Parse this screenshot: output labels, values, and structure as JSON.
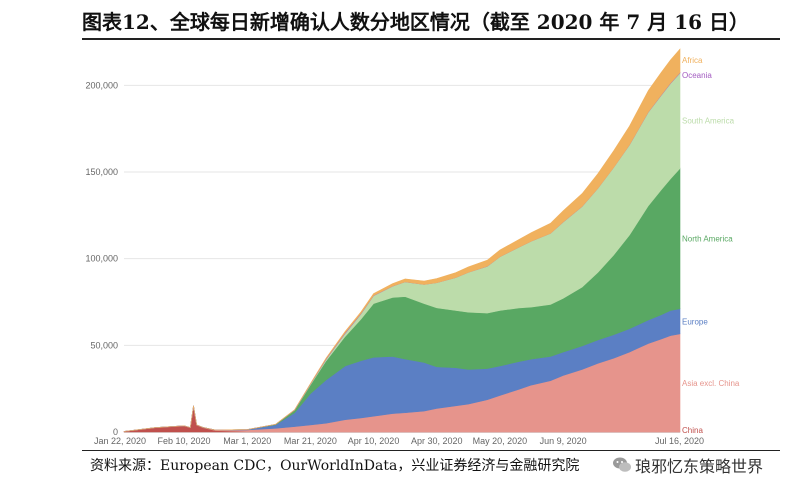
{
  "page": {
    "title": "图表12、全球每日新增确认人数分地区情况（截至 2020 年 7 月 16 日）",
    "source": "资料来源：European CDC，OurWorldInData，兴业证券经济与金融研究院",
    "watermark": "琅邪忆东策略世界"
  },
  "chart_data": {
    "type": "area",
    "title": "",
    "xlabel": "",
    "ylabel": "",
    "x": [
      "2020-01-22",
      "2020-02-01",
      "2020-02-10",
      "2020-02-12",
      "2020-02-13",
      "2020-02-14",
      "2020-02-16",
      "2020-02-20",
      "2020-03-01",
      "2020-03-10",
      "2020-03-16",
      "2020-03-21",
      "2020-03-26",
      "2020-04-01",
      "2020-04-06",
      "2020-04-10",
      "2020-04-16",
      "2020-04-20",
      "2020-04-26",
      "2020-04-30",
      "2020-05-06",
      "2020-05-10",
      "2020-05-16",
      "2020-05-20",
      "2020-05-26",
      "2020-05-30",
      "2020-06-05",
      "2020-06-09",
      "2020-06-15",
      "2020-06-20",
      "2020-06-25",
      "2020-06-30",
      "2020-07-03",
      "2020-07-06",
      "2020-07-10",
      "2020-07-13",
      "2020-07-16"
    ],
    "ylim": [
      0,
      225000
    ],
    "yticks": [
      0,
      50000,
      100000,
      150000,
      200000
    ],
    "ytick_labels": [
      "0",
      "50,000",
      "100,000",
      "150,000",
      "200,000"
    ],
    "xtick_labels": [
      "Jan 22, 2020",
      "Feb 10, 2020",
      "Mar 1, 2020",
      "Mar 21, 2020",
      "Apr 10, 2020",
      "Apr 30, 2020",
      "May 20, 2020",
      "Jun 9, 2020",
      "Jul 16, 2020"
    ],
    "xtick_index": [
      0,
      2,
      8,
      11,
      15,
      19,
      23,
      27,
      36
    ],
    "stacked": true,
    "series": [
      {
        "name": "China",
        "color": "#c0504d",
        "values": [
          300,
          2500,
          3500,
          2500,
          15000,
          4000,
          2500,
          800,
          200,
          100,
          100,
          100,
          100,
          100,
          100,
          100,
          100,
          100,
          100,
          100,
          100,
          100,
          100,
          100,
          100,
          100,
          100,
          100,
          100,
          100,
          100,
          100,
          100,
          100,
          100,
          100,
          100
        ]
      },
      {
        "name": "Asia excl. China",
        "color": "#e6948c",
        "values": [
          0,
          50,
          100,
          100,
          100,
          100,
          150,
          300,
          1000,
          2000,
          3000,
          4000,
          5000,
          7000,
          8000,
          9000,
          10500,
          11000,
          12000,
          13500,
          15000,
          16000,
          18500,
          21000,
          24500,
          27000,
          29500,
          32500,
          36000,
          39500,
          42500,
          46000,
          48500,
          51000,
          53500,
          55500,
          56500
        ]
      },
      {
        "name": "Europe",
        "color": "#5b7fc4",
        "values": [
          0,
          0,
          0,
          0,
          0,
          0,
          0,
          20,
          200,
          2000,
          8000,
          18000,
          25000,
          31000,
          33000,
          34000,
          33000,
          31000,
          28000,
          24000,
          22000,
          20000,
          18000,
          17000,
          16000,
          15000,
          14000,
          13500,
          13500,
          13500,
          13500,
          13500,
          13500,
          13500,
          14000,
          14500,
          14500
        ]
      },
      {
        "name": "North America",
        "color": "#59a863",
        "values": [
          0,
          5,
          5,
          5,
          5,
          5,
          5,
          20,
          20,
          300,
          1500,
          5000,
          11000,
          17000,
          24000,
          31000,
          34000,
          36000,
          34000,
          34000,
          33000,
          33000,
          32000,
          32000,
          31000,
          30000,
          30000,
          31000,
          34000,
          39000,
          46000,
          54000,
          60000,
          66000,
          72000,
          76000,
          81000
        ]
      },
      {
        "name": "South America",
        "color": "#bcdcaa",
        "values": [
          0,
          0,
          0,
          0,
          0,
          0,
          0,
          0,
          0,
          20,
          100,
          400,
          900,
          1800,
          3000,
          4500,
          6500,
          8500,
          11000,
          14500,
          19000,
          23000,
          27000,
          31000,
          35000,
          38000,
          41000,
          44000,
          46500,
          48500,
          50500,
          52000,
          53000,
          54000,
          54500,
          55000,
          55000
        ]
      },
      {
        "name": "Oceania",
        "color": "#a35bc1",
        "values": [
          0,
          0,
          0,
          0,
          0,
          0,
          0,
          0,
          0,
          10,
          60,
          200,
          350,
          400,
          300,
          150,
          60,
          30,
          20,
          15,
          15,
          15,
          15,
          15,
          15,
          15,
          15,
          15,
          15,
          15,
          20,
          50,
          100,
          150,
          200,
          250,
          300
        ]
      },
      {
        "name": "Africa",
        "color": "#f0b15e",
        "values": [
          0,
          0,
          0,
          0,
          0,
          0,
          0,
          0,
          0,
          20,
          80,
          200,
          400,
          700,
          900,
          1100,
          1400,
          1700,
          2000,
          2400,
          2800,
          3100,
          3500,
          3900,
          4400,
          5000,
          5800,
          6500,
          7400,
          8400,
          9600,
          10800,
          11600,
          12300,
          13000,
          13300,
          13500
        ]
      }
    ]
  }
}
